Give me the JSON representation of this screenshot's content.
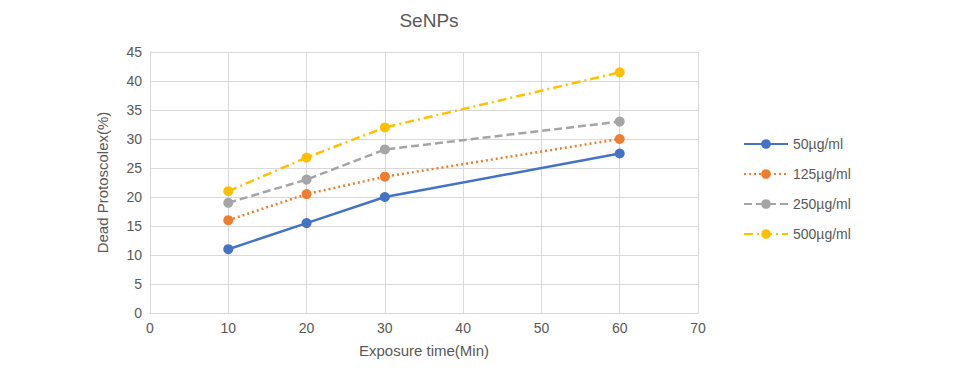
{
  "chart_data": {
    "type": "line",
    "title": "SeNPs",
    "x_label": "Exposure time(Min)",
    "y_label": "Dead Protoscolex(%)",
    "x": [
      10,
      20,
      30,
      60
    ],
    "series": [
      {
        "name": "50µg/ml",
        "color": "#4472c4",
        "line_style": "solid",
        "marker": "circle",
        "values": [
          11,
          15.5,
          20,
          27.5
        ]
      },
      {
        "name": "125µg/ml",
        "color": "#ed7d31",
        "line_style": "dotted",
        "marker": "circle",
        "values": [
          16,
          20.5,
          23.5,
          30
        ]
      },
      {
        "name": "250µg/ml",
        "color": "#a5a5a5",
        "line_style": "dashed",
        "marker": "circle",
        "values": [
          19,
          23,
          28.2,
          33
        ]
      },
      {
        "name": "500µg/ml",
        "color": "#ffc000",
        "line_style": "dashdot",
        "marker": "circle",
        "values": [
          21,
          26.8,
          32,
          41.5
        ]
      }
    ],
    "xlim": [
      0,
      70
    ],
    "xticks": [
      0,
      10,
      20,
      30,
      40,
      50,
      60,
      70
    ],
    "ylim": [
      0,
      45
    ],
    "yticks": [
      0,
      5,
      10,
      15,
      20,
      25,
      30,
      35,
      40,
      45
    ],
    "grid": true,
    "legend": "right"
  }
}
